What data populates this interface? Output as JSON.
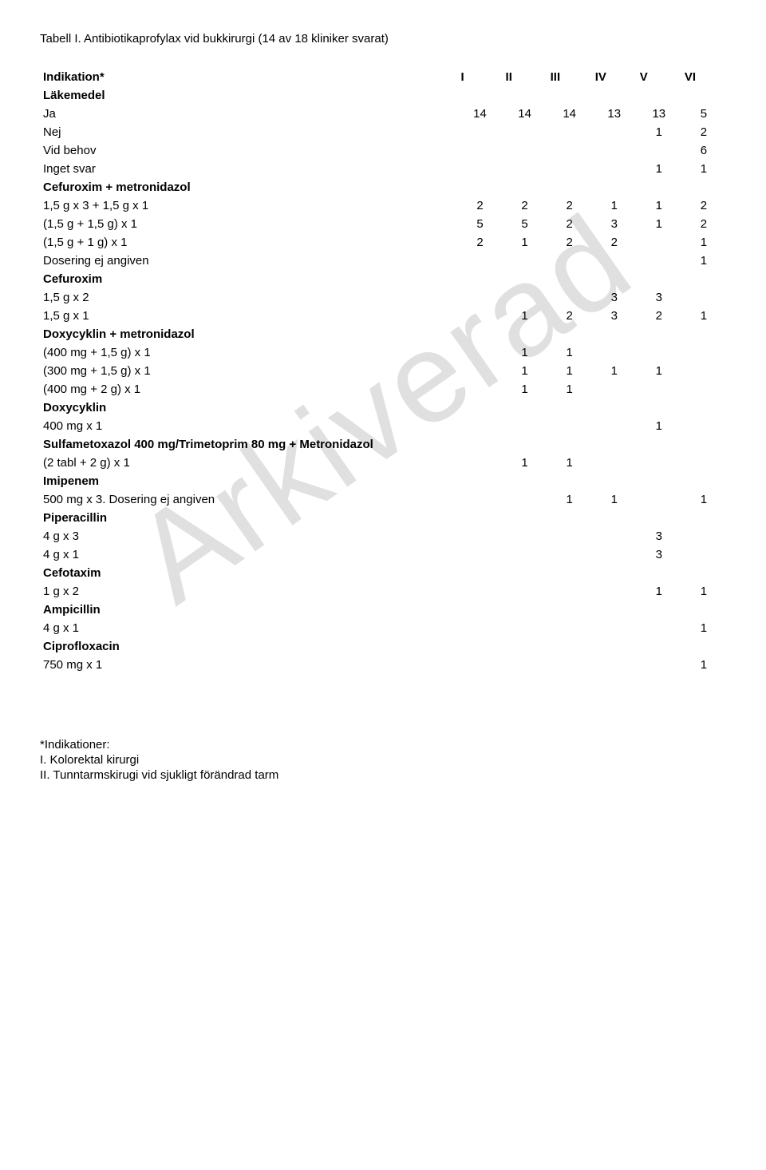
{
  "watermark": "Arkiverad",
  "title": "Tabell I. Antibiotikaprofylax vid bukkirurgi (14 av 18 kliniker svarat)",
  "cols": [
    "I",
    "II",
    "III",
    "IV",
    "V",
    "VI"
  ],
  "header_label": "Indikation*",
  "rows": [
    {
      "label": "Läkemedel",
      "bold": true,
      "vals": [
        "",
        "",
        "",
        "",
        "",
        ""
      ]
    },
    {
      "label": "Ja",
      "vals": [
        "14",
        "14",
        "14",
        "13",
        "13",
        "5"
      ]
    },
    {
      "label": "Nej",
      "vals": [
        "",
        "",
        "",
        "",
        "1",
        "2"
      ]
    },
    {
      "label": "Vid behov",
      "vals": [
        "",
        "",
        "",
        "",
        "",
        "6"
      ]
    },
    {
      "label": "Inget svar",
      "vals": [
        "",
        "",
        "",
        "",
        "1",
        "1"
      ]
    },
    {
      "label": "Cefuroxim + metronidazol",
      "bold": true,
      "vals": [
        "",
        "",
        "",
        "",
        "",
        ""
      ]
    },
    {
      "label": "1,5 g x 3 + 1,5 g x 1",
      "vals": [
        "2",
        "2",
        "2",
        "1",
        "1",
        "2"
      ]
    },
    {
      "label": "(1,5 g + 1,5 g) x 1",
      "vals": [
        "5",
        "5",
        "2",
        "3",
        "1",
        "2"
      ]
    },
    {
      "label": "(1,5 g + 1 g) x 1",
      "vals": [
        "2",
        "1",
        "2",
        "2",
        "",
        "1"
      ]
    },
    {
      "label": "Dosering ej angiven",
      "vals": [
        "",
        "",
        "",
        "",
        "",
        "1"
      ]
    },
    {
      "label": "Cefuroxim",
      "bold": true,
      "vals": [
        "",
        "",
        "",
        "",
        "",
        ""
      ]
    },
    {
      "label": "1,5 g x 2",
      "vals": [
        "",
        "",
        "",
        "3",
        "3",
        ""
      ]
    },
    {
      "label": "1,5 g x 1",
      "vals": [
        "",
        "1",
        "2",
        "3",
        "2",
        "1"
      ]
    },
    {
      "label": "Doxycyklin + metronidazol",
      "bold": true,
      "vals": [
        "",
        "",
        "",
        "",
        "",
        ""
      ]
    },
    {
      "label": "(400 mg + 1,5 g) x 1",
      "vals": [
        "",
        "1",
        "1",
        "",
        "",
        ""
      ]
    },
    {
      "label": "(300 mg + 1,5 g) x 1",
      "vals": [
        "",
        "1",
        "1",
        "1",
        "1",
        ""
      ]
    },
    {
      "label": "(400 mg + 2 g) x 1",
      "vals": [
        "",
        "1",
        "1",
        "",
        "",
        ""
      ]
    },
    {
      "label": "Doxycyklin",
      "bold": true,
      "vals": [
        "",
        "",
        "",
        "",
        "",
        ""
      ]
    },
    {
      "label": "400 mg x 1",
      "vals": [
        "",
        "",
        "",
        "",
        "1",
        ""
      ]
    },
    {
      "label": "Sulfametoxazol 400 mg/Trimetoprim 80 mg + Metronidazol",
      "bold": true,
      "vals": [
        "",
        "",
        "",
        "",
        "",
        ""
      ]
    },
    {
      "label": "(2 tabl + 2 g) x 1",
      "vals": [
        "",
        "1",
        "1",
        "",
        "",
        ""
      ]
    },
    {
      "label": "Imipenem",
      "bold": true,
      "vals": [
        "",
        "",
        "",
        "",
        "",
        ""
      ]
    },
    {
      "label": "500 mg x 3. Dosering ej angiven",
      "vals": [
        "",
        "",
        "1",
        "1",
        "",
        "1"
      ]
    },
    {
      "label": "Piperacillin",
      "bold": true,
      "vals": [
        "",
        "",
        "",
        "",
        "",
        ""
      ]
    },
    {
      "label": "4 g x 3",
      "vals": [
        "",
        "",
        "",
        "",
        "3",
        ""
      ]
    },
    {
      "label": "4 g x 1",
      "vals": [
        "",
        "",
        "",
        "",
        "3",
        ""
      ]
    },
    {
      "label": "Cefotaxim",
      "bold": true,
      "vals": [
        "",
        "",
        "",
        "",
        "",
        ""
      ]
    },
    {
      "label": "1 g x 2",
      "vals": [
        "",
        "",
        "",
        "",
        "1",
        "1"
      ]
    },
    {
      "label": "Ampicillin",
      "bold": true,
      "vals": [
        "",
        "",
        "",
        "",
        "",
        ""
      ]
    },
    {
      "label": "4 g x 1",
      "vals": [
        "",
        "",
        "",
        "",
        "",
        "1"
      ]
    },
    {
      "label": "Ciprofloxacin",
      "bold": true,
      "vals": [
        "",
        "",
        "",
        "",
        "",
        ""
      ]
    },
    {
      "label": "750 mg x 1",
      "vals": [
        "",
        "",
        "",
        "",
        "",
        "1"
      ]
    }
  ],
  "footer": {
    "line1": "*Indikationer:",
    "line2": "I. Kolorektal kirurgi",
    "line3": "II. Tunntarmskirugi vid sjukligt förändrad tarm"
  }
}
